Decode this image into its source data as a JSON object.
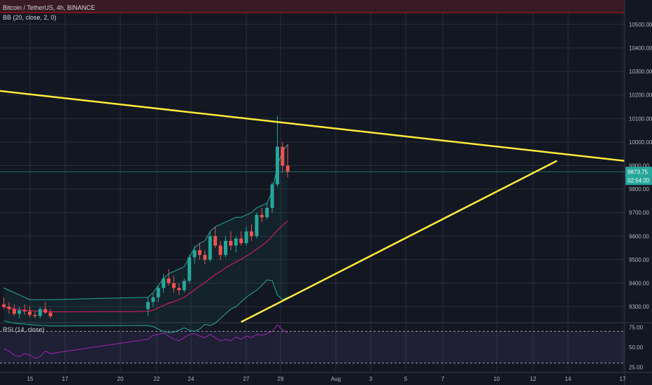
{
  "header": {
    "symbol_title": "Bitcoin / TetherUS, 4h, BINANCE",
    "bb_label": "BB (20, close, 2, 0)",
    "rsi_label": "RSI (14, close)"
  },
  "price_tag": {
    "price": "9873.75",
    "countdown": "02:54:20",
    "color": "#26a69a"
  },
  "colors": {
    "background": "#131722",
    "grid": "#2a2e39",
    "up": "#26a69a",
    "down": "#ef5350",
    "trendline": "#ffeb3b",
    "bb_upper_lower": "#26a69a",
    "bb_basis": "#e91e63",
    "rsi_line": "#9c27b0",
    "rsi_band": "#7e57c2"
  },
  "chart_data": [
    {
      "type": "candlestick",
      "title": "Bitcoin / TetherUS, 4h, BINANCE",
      "x_tick_labels": [
        "15",
        "17",
        "20",
        "22",
        "24",
        "27",
        "29",
        "Aug",
        "3",
        "5",
        "7",
        "10",
        "12",
        "14",
        "17"
      ],
      "y_tick_labels": [
        "10500.00",
        "10400.00",
        "10300.00",
        "10200.00",
        "10100.00",
        "10000.00",
        "9900.00",
        "9800.00",
        "9700.00",
        "9600.00",
        "9500.00",
        "9400.00",
        "9300.00"
      ],
      "ylim": [
        9235,
        10550
      ],
      "y_scale": "linear",
      "grid": true,
      "current_price": 9873.75,
      "candles": [
        {
          "o": 9310,
          "h": 9340,
          "l": 9290,
          "c": 9300
        },
        {
          "o": 9300,
          "h": 9320,
          "l": 9270,
          "c": 9290
        },
        {
          "o": 9290,
          "h": 9310,
          "l": 9260,
          "c": 9270
        },
        {
          "o": 9270,
          "h": 9300,
          "l": 9250,
          "c": 9285
        },
        {
          "o": 9285,
          "h": 9310,
          "l": 9265,
          "c": 9280
        },
        {
          "o": 9280,
          "h": 9300,
          "l": 9255,
          "c": 9265
        },
        {
          "o": 9265,
          "h": 9280,
          "l": 9250,
          "c": 9260
        },
        {
          "o": 9260,
          "h": 9300,
          "l": 9250,
          "c": 9290
        },
        {
          "o": 9290,
          "h": 9320,
          "l": 9270,
          "c": 9275
        },
        {
          "o": 9275,
          "h": 9290,
          "l": 9250,
          "c": 9260
        },
        {
          "o": 9290,
          "h": 9340,
          "l": 9260,
          "c": 9320
        },
        {
          "o": 9320,
          "h": 9360,
          "l": 9300,
          "c": 9340
        },
        {
          "o": 9340,
          "h": 9390,
          "l": 9320,
          "c": 9380
        },
        {
          "o": 9380,
          "h": 9440,
          "l": 9360,
          "c": 9420
        },
        {
          "o": 9420,
          "h": 9460,
          "l": 9390,
          "c": 9400
        },
        {
          "o": 9400,
          "h": 9430,
          "l": 9360,
          "c": 9380
        },
        {
          "o": 9380,
          "h": 9400,
          "l": 9350,
          "c": 9370
        },
        {
          "o": 9370,
          "h": 9420,
          "l": 9360,
          "c": 9410
        },
        {
          "o": 9410,
          "h": 9520,
          "l": 9400,
          "c": 9510
        },
        {
          "o": 9510,
          "h": 9560,
          "l": 9480,
          "c": 9540
        },
        {
          "o": 9540,
          "h": 9570,
          "l": 9500,
          "c": 9520
        },
        {
          "o": 9520,
          "h": 9540,
          "l": 9480,
          "c": 9500
        },
        {
          "o": 9500,
          "h": 9620,
          "l": 9490,
          "c": 9600
        },
        {
          "o": 9600,
          "h": 9640,
          "l": 9550,
          "c": 9560
        },
        {
          "o": 9560,
          "h": 9580,
          "l": 9500,
          "c": 9520
        },
        {
          "o": 9520,
          "h": 9600,
          "l": 9510,
          "c": 9580
        },
        {
          "o": 9580,
          "h": 9620,
          "l": 9540,
          "c": 9560
        },
        {
          "o": 9560,
          "h": 9600,
          "l": 9530,
          "c": 9590
        },
        {
          "o": 9590,
          "h": 9620,
          "l": 9560,
          "c": 9570
        },
        {
          "o": 9570,
          "h": 9640,
          "l": 9560,
          "c": 9620
        },
        {
          "o": 9620,
          "h": 9650,
          "l": 9580,
          "c": 9600
        },
        {
          "o": 9600,
          "h": 9700,
          "l": 9590,
          "c": 9690
        },
        {
          "o": 9690,
          "h": 9720,
          "l": 9660,
          "c": 9680
        },
        {
          "o": 9680,
          "h": 9740,
          "l": 9670,
          "c": 9720
        },
        {
          "o": 9720,
          "h": 9830,
          "l": 9700,
          "c": 9820
        },
        {
          "o": 9820,
          "h": 10110,
          "l": 9810,
          "c": 9980
        },
        {
          "o": 9980,
          "h": 10000,
          "l": 9870,
          "c": 9900
        },
        {
          "o": 9900,
          "h": 9990,
          "l": 9850,
          "c": 9873.75
        }
      ],
      "bollinger": {
        "upper": [
          9380,
          9370,
          9360,
          9350,
          9340,
          9330,
          9330,
          9330,
          9330,
          9330,
          9340,
          9360,
          9390,
          9420,
          9440,
          9450,
          9460,
          9470,
          9510,
          9550,
          9570,
          9580,
          9620,
          9640,
          9650,
          9660,
          9670,
          9680,
          9680,
          9690,
          9700,
          9720,
          9730,
          9740,
          9790,
          9900,
          9960,
          9990
        ],
        "basis": [
          9300,
          9295,
          9290,
          9288,
          9286,
          9284,
          9282,
          9280,
          9280,
          9278,
          9280,
          9285,
          9295,
          9305,
          9315,
          9322,
          9330,
          9340,
          9355,
          9372,
          9388,
          9402,
          9420,
          9436,
          9450,
          9465,
          9478,
          9490,
          9502,
          9515,
          9528,
          9545,
          9560,
          9577,
          9600,
          9625,
          9645,
          9665
        ],
        "lower": [
          9240,
          9235,
          9230,
          9228,
          9226,
          9224,
          9222,
          9220,
          9220,
          9218,
          9220,
          9215,
          9205,
          9195,
          9190,
          9192,
          9200,
          9210,
          9200,
          9195,
          9205,
          9225,
          9220,
          9230,
          9250,
          9270,
          9290,
          9300,
          9320,
          9340,
          9356,
          9370,
          9390,
          9414,
          9410,
          9350,
          9330,
          9340
        ]
      },
      "trendlines": [
        {
          "name": "upper trendline",
          "from": {
            "bar": -6,
            "price": 10230
          },
          "to": {
            "bar": 102,
            "price": 9920
          }
        },
        {
          "name": "lower trendline",
          "from": {
            "bar": 28,
            "price": 9235
          },
          "to": {
            "bar": 89,
            "price": 9920
          }
        }
      ]
    },
    {
      "type": "line",
      "title": "RSI (14, close)",
      "y_tick_labels": [
        "75.00",
        "50.00",
        "25.00"
      ],
      "ylim": [
        20,
        80
      ],
      "bands": [
        30,
        70
      ],
      "values": [
        48,
        45,
        40,
        38,
        42,
        40,
        36,
        38,
        45,
        42,
        60,
        65,
        66,
        68,
        64,
        60,
        58,
        62,
        66,
        67,
        64,
        62,
        66,
        62,
        58,
        60,
        58,
        63,
        60,
        64,
        62,
        66,
        65,
        67,
        70,
        78,
        72,
        68
      ]
    }
  ]
}
